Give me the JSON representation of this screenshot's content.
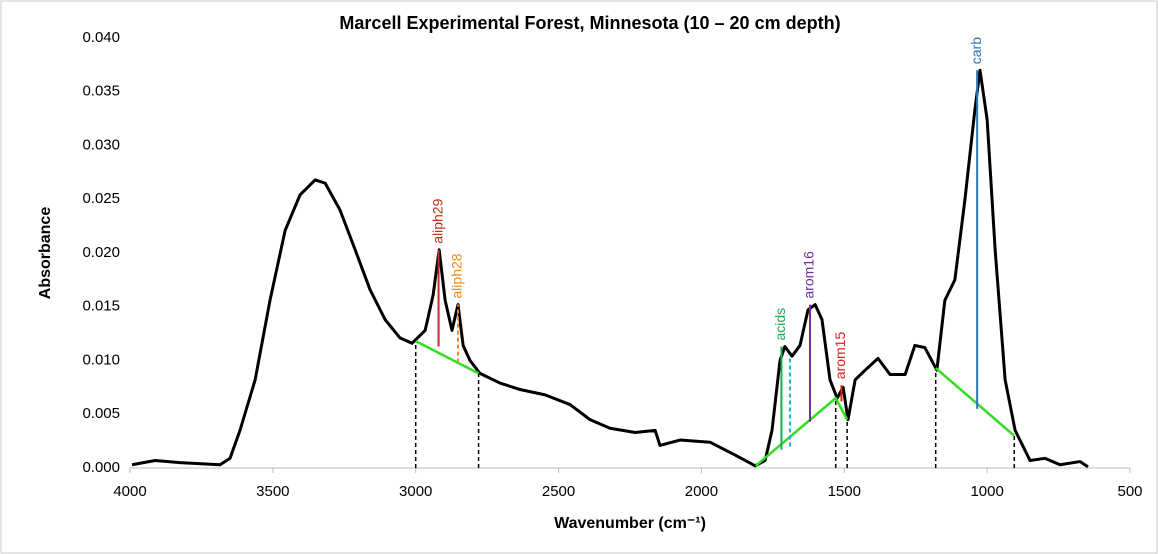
{
  "chart_data": {
    "type": "line",
    "title": "Marcell Experimental Forest, Minnesota (10 – 20 cm depth)",
    "xlabel": "Wavenumber (cm⁻¹)",
    "ylabel": "Absorbance",
    "xlim": [
      4000,
      500
    ],
    "ylim": [
      0,
      0.04
    ],
    "xticks": [
      4000,
      3500,
      3000,
      2500,
      2000,
      1500,
      1000,
      500
    ],
    "yticks": [
      {
        "value": 0,
        "label": "0.000"
      },
      {
        "value": 0.005,
        "label": "0.005"
      },
      {
        "value": 0.01,
        "label": "0.010"
      },
      {
        "value": 0.015,
        "label": "0.015"
      },
      {
        "value": 0.02,
        "label": "0.020"
      },
      {
        "value": 0.025,
        "label": "0.025"
      },
      {
        "value": 0.03,
        "label": "0.030"
      },
      {
        "value": 0.035,
        "label": "0.035"
      },
      {
        "value": 0.04,
        "label": "0.040"
      }
    ],
    "series": [
      {
        "color": "#000000",
        "x": [
          3993,
          3912,
          3825,
          3685,
          3650,
          3615,
          3562,
          3510,
          3457,
          3405,
          3352,
          3317,
          3265,
          3212,
          3160,
          3107,
          3055,
          3013,
          2967,
          2939,
          2918,
          2897,
          2873,
          2852,
          2834,
          2810,
          2775,
          2705,
          2635,
          2547,
          2460,
          2390,
          2320,
          2232,
          2162,
          2145,
          2075,
          1970,
          1882,
          1812,
          1777,
          1753,
          1725,
          1708,
          1683,
          1655,
          1627,
          1602,
          1578,
          1550,
          1525,
          1504,
          1487,
          1462,
          1427,
          1382,
          1340,
          1287,
          1253,
          1218,
          1176,
          1148,
          1113,
          1078,
          1043,
          1025,
          1000,
          972,
          937,
          902,
          850,
          797,
          745,
          675,
          647
        ],
        "values": [
          0.0003,
          0.0007,
          0.0005,
          0.0003,
          0.0009,
          0.0035,
          0.0082,
          0.0156,
          0.0221,
          0.0254,
          0.0268,
          0.0265,
          0.024,
          0.0203,
          0.0166,
          0.0138,
          0.0121,
          0.0116,
          0.0128,
          0.0161,
          0.0203,
          0.0156,
          0.0128,
          0.0152,
          0.0114,
          0.01,
          0.0088,
          0.0079,
          0.0073,
          0.0068,
          0.0059,
          0.0045,
          0.0037,
          0.0033,
          0.0035,
          0.0021,
          0.0026,
          0.0024,
          0.0012,
          0.0002,
          0.0007,
          0.0035,
          0.01,
          0.0113,
          0.0104,
          0.0114,
          0.0147,
          0.0152,
          0.0138,
          0.0082,
          0.0065,
          0.0075,
          0.0045,
          0.0082,
          0.0091,
          0.0102,
          0.0087,
          0.0087,
          0.0114,
          0.0112,
          0.0091,
          0.0156,
          0.0175,
          0.0249,
          0.0333,
          0.037,
          0.0324,
          0.0203,
          0.0082,
          0.0035,
          0.0007,
          0.0009,
          0.0003,
          0.0006,
          0.0001
        ]
      },
      {
        "color": "#33dd22",
        "x": [
          3000,
          2780,
          1810,
          1810,
          1530,
          1490,
          1180,
          1180,
          905
        ],
        "values": [
          0.0118,
          0.0088,
          null,
          0.0002,
          0.0065,
          0.0045,
          null,
          0.0093,
          0.003
        ]
      }
    ],
    "drop_lines": [
      {
        "x": 3000,
        "y": 0.0118
      },
      {
        "x": 2780,
        "y": 0.0088
      },
      {
        "x": 1530,
        "y": 0.0065
      },
      {
        "x": 1490,
        "y": 0.0045
      },
      {
        "x": 1180,
        "y": 0.0093
      },
      {
        "x": 905,
        "y": 0.003
      }
    ],
    "peaks": [
      {
        "label": "aliph29",
        "x": 2920,
        "y0": 0.0113,
        "y1": 0.0203,
        "color": "#c0301c",
        "dashed": false
      },
      {
        "label": "aliph28",
        "x": 2852,
        "y0": 0.0098,
        "y1": 0.0152,
        "color": "#f08a1c",
        "dashed": true
      },
      {
        "label": "acids",
        "x": 1720,
        "y0": 0.0017,
        "y1": 0.0113,
        "color": "#1aaa55",
        "dashed": false
      },
      {
        "label": "arom16",
        "x": 1620,
        "y0": 0.0043,
        "y1": 0.0152,
        "color": "#7030a0",
        "dashed": false
      },
      {
        "label": "arom15",
        "x": 1510,
        "y0": 0.0062,
        "y1": 0.0077,
        "color": "#e02020",
        "dashed": false
      },
      {
        "label": "carb",
        "x": 1035,
        "y0": 0.0055,
        "y1": 0.037,
        "color": "#2e75b6",
        "dashed": false
      }
    ],
    "extra_lines": [
      {
        "x": 1690,
        "y0": 0.002,
        "y1": 0.0104,
        "color": "#20b0d0",
        "dashed": true
      }
    ]
  }
}
